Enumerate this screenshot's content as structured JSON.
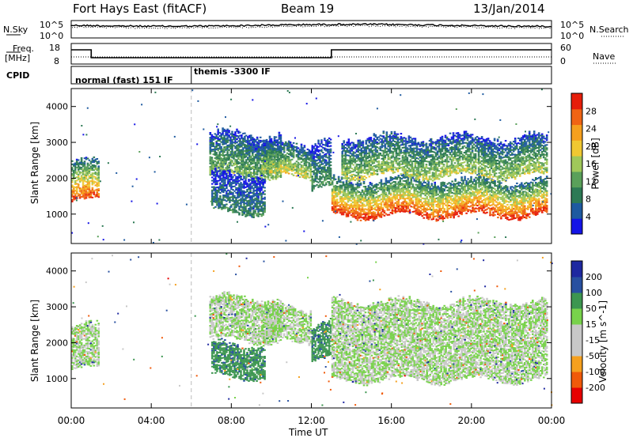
{
  "header": {
    "station": "Fort Hays East (fitACF)",
    "beam": "Beam 19",
    "date": "13/Jan/2014"
  },
  "side_labels": {
    "nsky": "N.Sky",
    "nsearch": "N.Search",
    "freq": "Freq.",
    "freq_unit": "[MHz]",
    "nave": "Nave",
    "cpid": "CPID"
  },
  "top_axis_labels": {
    "noise_left_top": "10^5",
    "noise_left_bottom": "10^0",
    "noise_right_top": "10^5",
    "noise_right_bottom": "10^0",
    "freq_left_top": "18",
    "freq_left_bottom": "8",
    "nave_right_top": "60",
    "nave_right_bottom": "0"
  },
  "cpid_segments": [
    {
      "start_hour": 0,
      "end_hour": 6.0,
      "label": "normal (fast) 151 IF"
    },
    {
      "start_hour": 6.0,
      "end_hour": 24,
      "label": "themis -3300 IF"
    }
  ],
  "colors": {
    "power": [
      "#1414e6",
      "#1e5aa0",
      "#2d7a55",
      "#5aa05a",
      "#a0c85a",
      "#f0c832",
      "#f5a01e",
      "#f06414",
      "#e61e0a"
    ],
    "velocity": [
      "#e60000",
      "#f05a0a",
      "#f5a01e",
      "#c8c8c8",
      "#c8c8c8",
      "#78d24b",
      "#3c9650",
      "#2850a0",
      "#1e28a0"
    ]
  },
  "chart_data": [
    {
      "type": "heatmap",
      "name": "power",
      "xlabel": "",
      "ylabel": "Slant Range [km]",
      "xlim": [
        0,
        24
      ],
      "ylim": [
        180,
        4500
      ],
      "x_ticks": [
        0,
        4,
        8,
        12,
        16,
        20,
        24
      ],
      "y_ticks": [
        1000,
        2000,
        3000,
        4000
      ],
      "colorbar": {
        "label": "Power [dB]",
        "ticks": [
          "4",
          "8",
          "12",
          "16",
          "20",
          "24",
          "28"
        ],
        "range": [
          0,
          30
        ]
      },
      "blobs": [
        {
          "t0": 0.0,
          "t1": 1.4,
          "r_low": 1300,
          "r_high": 2500,
          "core": [
            1400,
            2000
          ],
          "peak_db": 27
        },
        {
          "t0": 6.9,
          "t1": 10.5,
          "r_low": 2000,
          "r_high": 3300,
          "peak_db": 14
        },
        {
          "t0": 7.0,
          "t1": 9.7,
          "r_low": 1000,
          "r_high": 2200,
          "peak_db": 9
        },
        {
          "t0": 9.5,
          "t1": 12.0,
          "r_low": 2000,
          "r_high": 3000,
          "peak_db": 18
        },
        {
          "t0": 12.0,
          "t1": 13.0,
          "r_low": 1700,
          "r_high": 3100,
          "peak_db": 11
        },
        {
          "t0": 13.0,
          "t1": 23.8,
          "r_low": 900,
          "r_high": 2000,
          "peak_db": 28
        },
        {
          "t0": 13.5,
          "t1": 23.8,
          "r_low": 2000,
          "r_high": 3200,
          "peak_db": 16
        }
      ]
    },
    {
      "type": "heatmap",
      "name": "velocity",
      "xlabel": "Time UT",
      "ylabel": "Slant Range [km]",
      "xlim": [
        0,
        24
      ],
      "ylim": [
        180,
        4500
      ],
      "x_ticks": [
        0,
        4,
        8,
        12,
        16,
        20,
        24
      ],
      "x_tick_labels": [
        "00:00",
        "04:00",
        "08:00",
        "12:00",
        "16:00",
        "20:00",
        "00:00"
      ],
      "y_ticks": [
        1000,
        2000,
        3000,
        4000
      ],
      "colorbar": {
        "label": "Velocity [m s^-1]",
        "ticks": [
          "-200",
          "-100",
          "-50",
          "-15",
          "15",
          "50",
          "100",
          "200"
        ],
        "range": [
          -250,
          250
        ]
      },
      "blobs": [
        {
          "t0": 0.0,
          "t1": 1.4,
          "r_low": 1200,
          "r_high": 2500,
          "vel": 0
        },
        {
          "t0": 6.9,
          "t1": 10.5,
          "r_low": 2000,
          "r_high": 3300,
          "vel": 0
        },
        {
          "t0": 7.0,
          "t1": 9.7,
          "r_low": 1000,
          "r_high": 2000,
          "vel": 40
        },
        {
          "t0": 9.5,
          "t1": 12.0,
          "r_low": 2000,
          "r_high": 3000,
          "vel": 0
        },
        {
          "t0": 12.0,
          "t1": 13.0,
          "r_low": 1500,
          "r_high": 2600,
          "vel": 40
        },
        {
          "t0": 13.0,
          "t1": 23.8,
          "r_low": 900,
          "r_high": 3200,
          "vel": 0
        }
      ]
    }
  ]
}
